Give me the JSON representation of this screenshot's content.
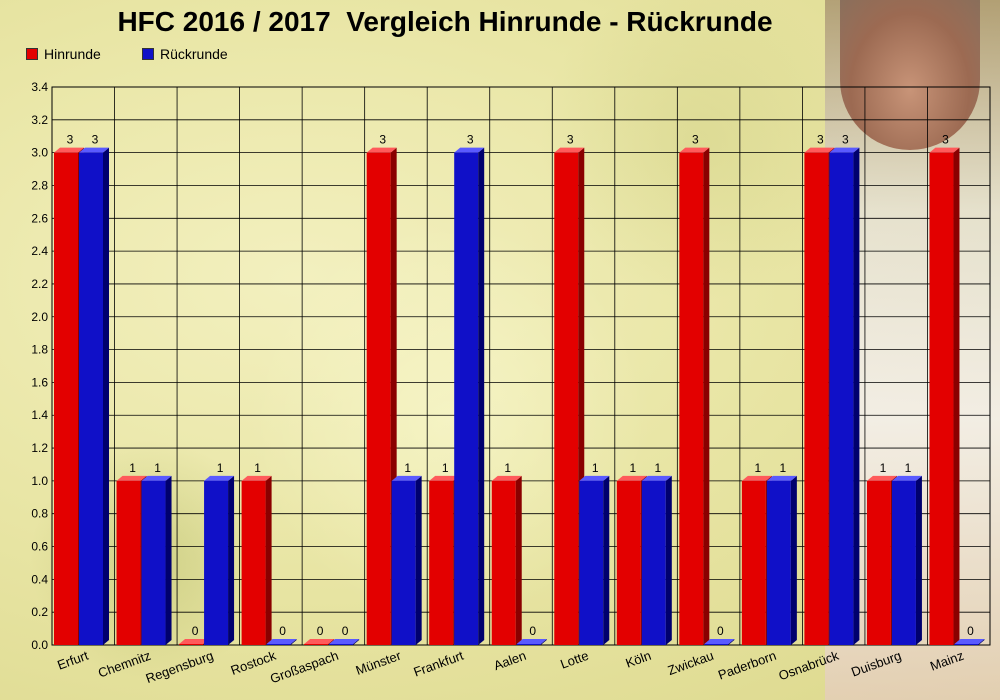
{
  "title": "HFC 2016 / 2017  Vergleich Hinrunde - Rückrunde",
  "colors": {
    "hinrunde": "#e30000",
    "rueckrunde": "#1010c8",
    "grid": "#000000"
  },
  "chart_data": {
    "type": "bar",
    "title": "HFC 2016 / 2017  Vergleich Hinrunde - Rückrunde",
    "xlabel": "",
    "ylabel": "",
    "ylim": [
      0,
      3.4
    ],
    "yticks": [
      "0.0",
      "0.2",
      "0.4",
      "0.6",
      "0.8",
      "1.0",
      "1.2",
      "1.4",
      "1.6",
      "1.8",
      "2.0",
      "2.2",
      "2.4",
      "2.6",
      "2.8",
      "3.0",
      "3.2",
      "3.4"
    ],
    "grid": true,
    "legend_position": "top-left",
    "categories": [
      "Erfurt",
      "Chemnitz",
      "Regensburg",
      "Rostock",
      "Großaspach",
      "Münster",
      "Frankfurt",
      "Aalen",
      "Lotte",
      "Köln",
      "Zwickau",
      "Paderborn",
      "Osnabrück",
      "Duisburg",
      "Mainz"
    ],
    "series": [
      {
        "name": "Hinrunde",
        "values": [
          3,
          1,
          0,
          1,
          0,
          3,
          1,
          1,
          3,
          1,
          3,
          1,
          3,
          1,
          3
        ]
      },
      {
        "name": "Rückrunde",
        "values": [
          3,
          1,
          1,
          0,
          0,
          1,
          3,
          0,
          1,
          1,
          0,
          1,
          3,
          1,
          0
        ]
      }
    ]
  }
}
